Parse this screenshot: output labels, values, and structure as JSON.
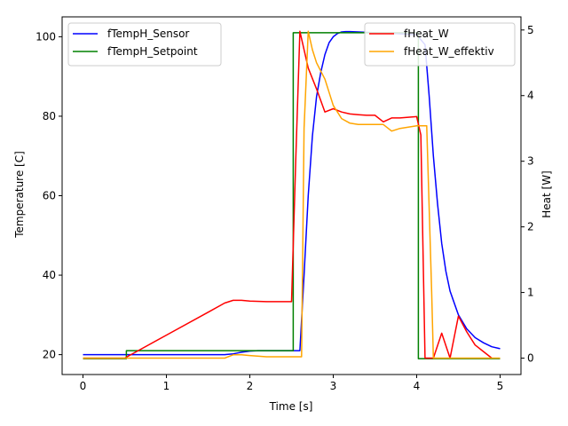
{
  "chart_data": {
    "type": "line",
    "xlabel": "Time [s]",
    "ylabel_left": "Temperature [C]",
    "ylabel_right": "Heat [W]",
    "xlim": [
      -0.25,
      5.25
    ],
    "ylim_left": [
      15,
      105
    ],
    "ylim_right": [
      -0.25,
      5.2
    ],
    "x_ticks": [
      0,
      1,
      2,
      3,
      4,
      5
    ],
    "y_ticks_left": [
      20,
      40,
      60,
      80,
      100
    ],
    "y_ticks_right": [
      0,
      1,
      2,
      3,
      4,
      5
    ],
    "grid": false,
    "legend_left": {
      "placement": "top-left",
      "entries": [
        "fTempH_Sensor",
        "fTempH_Setpoint"
      ]
    },
    "legend_right": {
      "placement": "top-right",
      "entries": [
        "fHeat_W",
        "fHeat_W_effektiv"
      ]
    },
    "series": [
      {
        "name": "fTempH_Sensor",
        "axis": "left",
        "color": "#0000ff",
        "x": [
          0,
          0.5,
          1.0,
          1.5,
          1.7,
          1.8,
          1.9,
          2.0,
          2.1,
          2.5,
          2.6,
          2.65,
          2.7,
          2.75,
          2.8,
          2.85,
          2.9,
          2.95,
          3.0,
          3.05,
          3.1,
          3.15,
          3.2,
          3.3,
          3.5,
          3.75,
          4.0,
          4.1,
          4.15,
          4.2,
          4.25,
          4.3,
          4.35,
          4.4,
          4.5,
          4.6,
          4.7,
          4.8,
          4.9,
          5.0
        ],
        "y": [
          20,
          20,
          20,
          20,
          20,
          20.2,
          20.6,
          20.9,
          21.0,
          21.0,
          21.0,
          40,
          60,
          75,
          85,
          91,
          95.5,
          98.5,
          100,
          100.8,
          101.2,
          101.3,
          101.3,
          101.2,
          101,
          100.8,
          100.5,
          98,
          85,
          70,
          58,
          48,
          41,
          36,
          30,
          26.5,
          24.3,
          23,
          22,
          21.5
        ]
      },
      {
        "name": "fTempH_Setpoint",
        "axis": "left",
        "color": "#008000",
        "x": [
          0,
          0.52,
          0.52,
          2.52,
          2.52,
          4.02,
          4.02,
          5.0
        ],
        "y": [
          19,
          19,
          21,
          21,
          101,
          101,
          19,
          19
        ]
      },
      {
        "name": "fHeat_W",
        "axis": "right",
        "color": "#ff0000",
        "x": [
          0,
          0.5,
          1.0,
          1.5,
          1.7,
          1.8,
          1.9,
          2.0,
          2.2,
          2.5,
          2.55,
          2.6,
          2.7,
          2.8,
          2.9,
          3.0,
          3.1,
          3.2,
          3.3,
          3.4,
          3.5,
          3.6,
          3.7,
          3.8,
          4.0,
          4.05,
          4.1,
          4.2,
          4.3,
          4.4,
          4.5,
          4.6,
          4.7,
          4.8,
          4.9
        ],
        "y": [
          0,
          0,
          0.35,
          0.7,
          0.84,
          0.88,
          0.88,
          0.87,
          0.86,
          0.86,
          3.0,
          4.98,
          4.42,
          4.1,
          3.75,
          3.8,
          3.75,
          3.72,
          3.71,
          3.7,
          3.7,
          3.6,
          3.66,
          3.66,
          3.68,
          3.4,
          0.0,
          0.0,
          0.38,
          0.0,
          0.64,
          0.4,
          0.2,
          0.1,
          0.0
        ]
      },
      {
        "name": "fHeat_W_effektiv",
        "axis": "right",
        "color": "#ffa500",
        "x": [
          0,
          0.5,
          1.0,
          1.5,
          1.7,
          1.8,
          1.9,
          2.0,
          2.2,
          2.5,
          2.62,
          2.65,
          2.7,
          2.75,
          2.8,
          2.9,
          3.0,
          3.1,
          3.2,
          3.3,
          3.5,
          3.6,
          3.7,
          3.8,
          4.0,
          4.12,
          4.18,
          4.2,
          4.5,
          5.0
        ],
        "y": [
          0,
          0,
          0,
          0,
          0,
          0.05,
          0.05,
          0.04,
          0.02,
          0.02,
          0.02,
          3.5,
          4.98,
          4.7,
          4.5,
          4.25,
          3.85,
          3.65,
          3.58,
          3.56,
          3.56,
          3.56,
          3.46,
          3.5,
          3.54,
          3.54,
          1.0,
          0.0,
          0.0,
          0.0
        ]
      }
    ]
  }
}
